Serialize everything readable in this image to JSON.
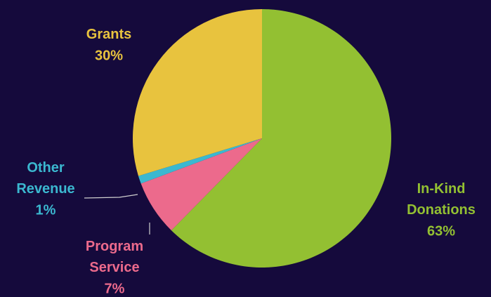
{
  "chart_data": {
    "type": "pie",
    "categories": [
      "In-Kind Donations",
      "Program Service",
      "Other Revenue",
      "Grants"
    ],
    "values": [
      63,
      7,
      1,
      30
    ],
    "value_labels": [
      "63%",
      "7%",
      "1%",
      "30%"
    ],
    "colors": [
      "#93c032",
      "#ec6a8c",
      "#3bb8d0",
      "#e8c33e"
    ],
    "start_angle": 90,
    "direction": "clockwise"
  }
}
